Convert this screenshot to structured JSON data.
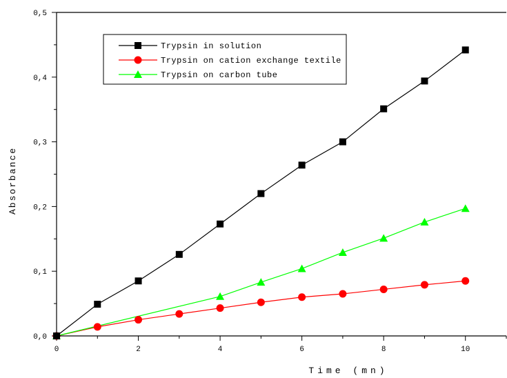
{
  "chart_data": {
    "type": "line",
    "xlabel": "Time (mn)",
    "ylabel": "Absorbance",
    "xlim": [
      0,
      11
    ],
    "ylim": [
      0,
      0.5
    ],
    "xticks": [
      0,
      2,
      4,
      6,
      8,
      10
    ],
    "yticks": [
      0,
      0.1,
      0.2,
      0.3,
      0.4,
      0.5
    ],
    "ytick_labels": [
      "0,0",
      "0,1",
      "0,2",
      "0,3",
      "0,4",
      "0,5"
    ],
    "grid": false,
    "legend": "top-left",
    "series": [
      {
        "name": "Trypsin in solution",
        "color": "#000000",
        "marker": "square",
        "x": [
          0,
          1,
          2,
          3,
          4,
          5,
          6,
          7,
          8,
          9,
          10
        ],
        "y": [
          0,
          0.049,
          0.085,
          0.126,
          0.173,
          0.22,
          0.264,
          0.3,
          0.351,
          0.394,
          0.442
        ]
      },
      {
        "name": "Trypsin on cation exchange textile",
        "color": "#ff0000",
        "marker": "circle",
        "x": [
          0,
          1,
          2,
          3,
          4,
          5,
          6,
          7,
          8,
          9,
          10
        ],
        "y": [
          0,
          0.014,
          0.025,
          0.034,
          0.043,
          0.052,
          0.06,
          0.065,
          0.072,
          0.079,
          0.085
        ]
      },
      {
        "name": "Trypsin on carbon tube",
        "color": "#00ff00",
        "marker": "triangle",
        "x": [
          0,
          4,
          5,
          6,
          7,
          8,
          9,
          10
        ],
        "y": [
          0,
          0.061,
          0.083,
          0.104,
          0.129,
          0.151,
          0.176,
          0.197
        ]
      }
    ]
  }
}
